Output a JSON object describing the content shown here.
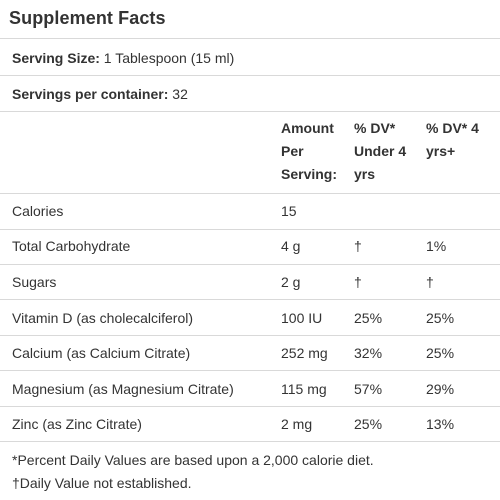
{
  "title": "Supplement Facts",
  "serving_size": {
    "label": "Serving Size:",
    "value": " 1 Tablespoon (15 ml)"
  },
  "servings_per_container": {
    "label": "Servings per container:",
    "value": " 32"
  },
  "headers": {
    "amount": [
      "Amount",
      "Per",
      "Serving:"
    ],
    "dv_under4": [
      "% DV*",
      "Under 4",
      "yrs"
    ],
    "dv_4plus": [
      "% DV* 4",
      "yrs+"
    ]
  },
  "rows": [
    {
      "name": "Calories",
      "amount": "15",
      "dv_under4": "",
      "dv_4plus": ""
    },
    {
      "name": "Total Carbohydrate",
      "amount": "4 g",
      "dv_under4": "†",
      "dv_4plus": "1%"
    },
    {
      "name": "Sugars",
      "amount": "2 g",
      "dv_under4": "†",
      "dv_4plus": "†"
    },
    {
      "name": "Vitamin D (as cholecalciferol)",
      "amount": "100 IU",
      "dv_under4": "25%",
      "dv_4plus": "25%"
    },
    {
      "name": "Calcium (as Calcium Citrate)",
      "amount": "252 mg",
      "dv_under4": "32%",
      "dv_4plus": "25%"
    },
    {
      "name": "Magnesium (as Magnesium Citrate)",
      "amount": "115 mg",
      "dv_under4": "57%",
      "dv_4plus": "29%"
    },
    {
      "name": "Zinc (as Zinc Citrate)",
      "amount": "2 mg",
      "dv_under4": "25%",
      "dv_4plus": "13%"
    }
  ],
  "footnotes": [
    "*Percent Daily Values are based upon a 2,000 calorie diet.",
    "†Daily Value not established."
  ]
}
